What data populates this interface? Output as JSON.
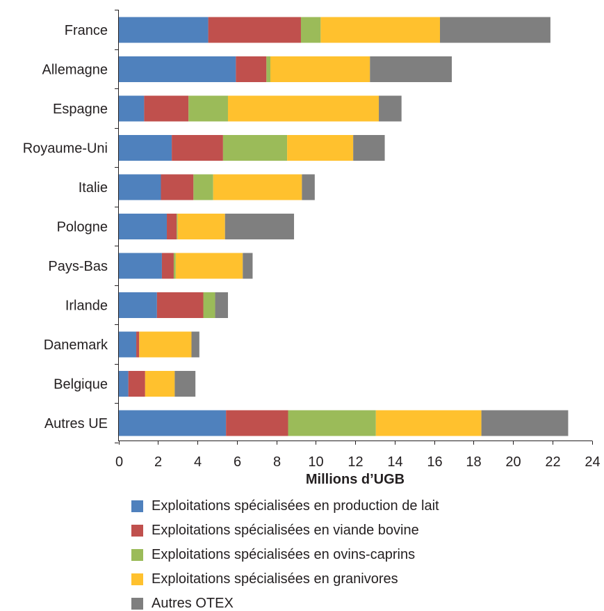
{
  "chart_data": {
    "type": "bar",
    "orientation": "horizontal",
    "stacked": true,
    "categories": [
      "France",
      "Allemagne",
      "Espagne",
      "Royaume-Uni",
      "Italie",
      "Pologne",
      "Pays-Bas",
      "Irlande",
      "Danemark",
      "Belgique",
      "Autres UE"
    ],
    "series": [
      {
        "name": "Exploitations spécialisées en production de lait",
        "color": "#4f81bd",
        "values": [
          4.55,
          5.95,
          1.3,
          2.7,
          2.15,
          2.45,
          2.2,
          1.95,
          0.9,
          0.5,
          5.45
        ]
      },
      {
        "name": "Exploitations spécialisées en viande bovine",
        "color": "#c0504d",
        "values": [
          4.7,
          1.55,
          2.25,
          2.6,
          1.65,
          0.5,
          0.6,
          2.35,
          0.15,
          0.85,
          3.15
        ]
      },
      {
        "name": "Exploitations spécialisées en ovins-caprins",
        "color": "#9bbb59",
        "values": [
          1.0,
          0.2,
          2.0,
          3.25,
          1.0,
          0.05,
          0.1,
          0.6,
          0.0,
          0.0,
          4.45
        ]
      },
      {
        "name": "Exploitations spécialisées en granivores",
        "color": "#ffc12e",
        "values": [
          6.05,
          5.05,
          7.65,
          3.35,
          4.5,
          2.4,
          3.4,
          0.0,
          2.65,
          1.5,
          5.35
        ]
      },
      {
        "name": "Autres OTEX",
        "color": "#7f7f7f",
        "values": [
          5.6,
          4.15,
          1.15,
          1.6,
          0.65,
          3.5,
          0.5,
          0.65,
          0.4,
          1.05,
          4.4
        ]
      }
    ],
    "xlabel": "Millions d’UGB",
    "xlim": [
      0,
      24
    ],
    "xticks": [
      "0",
      "2",
      "4",
      "6",
      "8",
      "10",
      "12",
      "14",
      "16",
      "18",
      "20",
      "22",
      "24"
    ],
    "grid": false,
    "legend_position": "bottom"
  }
}
